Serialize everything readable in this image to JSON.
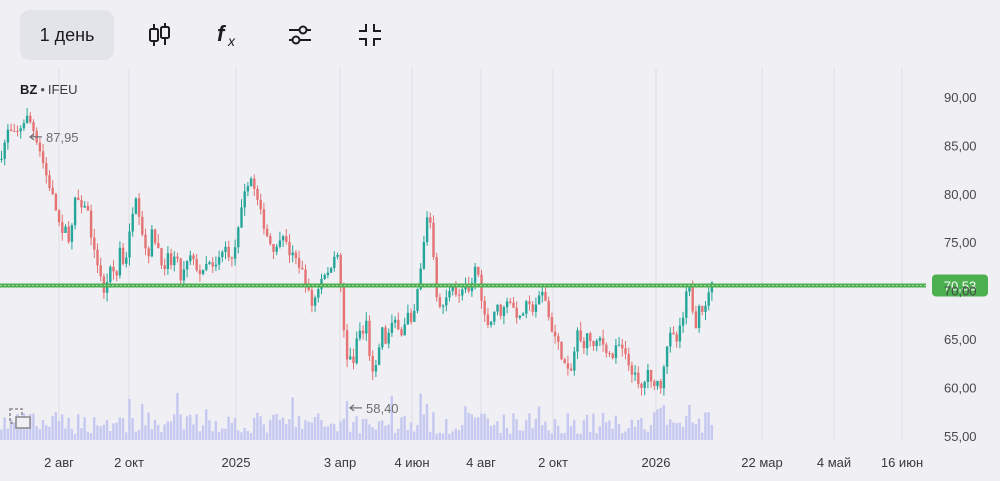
{
  "toolbar": {
    "period_label": "1 день",
    "icons": [
      "candlestick-icon",
      "function-icon",
      "settings-sliders-icon",
      "collapse-icon"
    ]
  },
  "symbol": {
    "ticker": "BZ",
    "separator": "•",
    "exchange": "IFEU"
  },
  "colors": {
    "up": "#26a69a",
    "down": "#e57373",
    "level_line": "#4caf50",
    "volume": "#c5c8f0",
    "grid": "#dcdce4",
    "background": "#efeff4",
    "price_tag_bg": "#4caf50"
  },
  "chart_data": {
    "type": "candlestick",
    "y_axis": {
      "ticks": [
        "90,00",
        "85,00",
        "80,00",
        "75,00",
        "70,00",
        "65,00",
        "60,00",
        "55,00"
      ],
      "ylim": [
        55,
        91
      ]
    },
    "x_axis": {
      "ticks": [
        "2 авг",
        "2 окт",
        "2025",
        "3 апр",
        "4 июн",
        "4 авг",
        "2 окт",
        "2026",
        "22 мар",
        "4 май",
        "16 июн"
      ]
    },
    "current_price": {
      "value": 70.53,
      "label": "70,53"
    },
    "annotations": [
      {
        "label": "87,95",
        "value": 87.95,
        "type": "high"
      },
      {
        "label": "58,40",
        "value": 58.4,
        "type": "low"
      }
    ],
    "price_path": [
      [
        0,
        83.5
      ],
      [
        8,
        86.5
      ],
      [
        16,
        86.0
      ],
      [
        24,
        87.5
      ],
      [
        28,
        87.95
      ],
      [
        34,
        86.5
      ],
      [
        40,
        84.5
      ],
      [
        46,
        82.0
      ],
      [
        52,
        80.0
      ],
      [
        58,
        77.5
      ],
      [
        62,
        75.5
      ],
      [
        66,
        76.5
      ],
      [
        70,
        75.0
      ],
      [
        76,
        80.0
      ],
      [
        82,
        78.0
      ],
      [
        86,
        79.5
      ],
      [
        90,
        76.5
      ],
      [
        94,
        74.0
      ],
      [
        100,
        72.0
      ],
      [
        104,
        69.5
      ],
      [
        108,
        71.5
      ],
      [
        112,
        72.5
      ],
      [
        116,
        71.0
      ],
      [
        120,
        74.5
      ],
      [
        124,
        72.5
      ],
      [
        128,
        74.5
      ],
      [
        132,
        78.0
      ],
      [
        136,
        80.0
      ],
      [
        140,
        77.5
      ],
      [
        144,
        75.0
      ],
      [
        148,
        73.5
      ],
      [
        152,
        76.0
      ],
      [
        156,
        75.0
      ],
      [
        160,
        74.0
      ],
      [
        164,
        71.5
      ],
      [
        168,
        73.5
      ],
      [
        172,
        72.5
      ],
      [
        176,
        74.0
      ],
      [
        180,
        71.0
      ],
      [
        184,
        72.0
      ],
      [
        190,
        73.5
      ],
      [
        196,
        72.5
      ],
      [
        202,
        71.5
      ],
      [
        208,
        73.0
      ],
      [
        214,
        72.0
      ],
      [
        220,
        73.5
      ],
      [
        226,
        74.5
      ],
      [
        232,
        73.0
      ],
      [
        238,
        76.0
      ],
      [
        242,
        78.5
      ],
      [
        246,
        80.5
      ],
      [
        250,
        82.0
      ],
      [
        254,
        80.5
      ],
      [
        258,
        79.0
      ],
      [
        262,
        77.5
      ],
      [
        266,
        76.0
      ],
      [
        270,
        75.0
      ],
      [
        276,
        74.0
      ],
      [
        282,
        76.5
      ],
      [
        288,
        74.0
      ],
      [
        294,
        73.5
      ],
      [
        300,
        72.5
      ],
      [
        304,
        71.5
      ],
      [
        308,
        70.0
      ],
      [
        312,
        68.5
      ],
      [
        316,
        69.5
      ],
      [
        320,
        71.0
      ],
      [
        324,
        72.0
      ],
      [
        328,
        71.5
      ],
      [
        332,
        73.0
      ],
      [
        336,
        74.5
      ],
      [
        340,
        71.5
      ],
      [
        343,
        67.0
      ],
      [
        346,
        62.5
      ],
      [
        350,
        63.5
      ],
      [
        354,
        62.0
      ],
      [
        358,
        66.5
      ],
      [
        362,
        65.0
      ],
      [
        366,
        67.0
      ],
      [
        370,
        63.0
      ],
      [
        374,
        60.5
      ],
      [
        378,
        63.5
      ],
      [
        382,
        66.0
      ],
      [
        386,
        64.5
      ],
      [
        390,
        66.0
      ],
      [
        396,
        67.0
      ],
      [
        402,
        65.5
      ],
      [
        408,
        67.5
      ],
      [
        412,
        66.0
      ],
      [
        416,
        69.0
      ],
      [
        420,
        71.5
      ],
      [
        424,
        75.0
      ],
      [
        428,
        78.5
      ],
      [
        432,
        76.0
      ],
      [
        436,
        70.0
      ],
      [
        440,
        68.0
      ],
      [
        446,
        69.0
      ],
      [
        452,
        71.0
      ],
      [
        458,
        69.0
      ],
      [
        464,
        70.5
      ],
      [
        470,
        69.5
      ],
      [
        476,
        73.0
      ],
      [
        480,
        70.5
      ],
      [
        484,
        67.5
      ],
      [
        490,
        66.5
      ],
      [
        496,
        68.5
      ],
      [
        502,
        67.5
      ],
      [
        508,
        69.5
      ],
      [
        514,
        68.0
      ],
      [
        520,
        67.0
      ],
      [
        526,
        68.5
      ],
      [
        532,
        68.0
      ],
      [
        538,
        69.0
      ],
      [
        544,
        70.0
      ],
      [
        548,
        67.5
      ],
      [
        552,
        66.0
      ],
      [
        558,
        64.5
      ],
      [
        564,
        62.5
      ],
      [
        570,
        61.0
      ],
      [
        574,
        63.5
      ],
      [
        578,
        66.0
      ],
      [
        582,
        64.0
      ],
      [
        588,
        65.5
      ],
      [
        594,
        64.0
      ],
      [
        600,
        65.0
      ],
      [
        606,
        64.0
      ],
      [
        612,
        63.0
      ],
      [
        618,
        64.5
      ],
      [
        624,
        63.5
      ],
      [
        630,
        62.0
      ],
      [
        636,
        61.0
      ],
      [
        640,
        59.5
      ],
      [
        644,
        60.5
      ],
      [
        648,
        61.5
      ],
      [
        652,
        60.0
      ],
      [
        656,
        61.0
      ],
      [
        660,
        59.8
      ],
      [
        664,
        62.5
      ],
      [
        668,
        65.0
      ],
      [
        672,
        65.5
      ],
      [
        676,
        64.5
      ],
      [
        680,
        66.0
      ],
      [
        684,
        67.5
      ],
      [
        688,
        71.0
      ],
      [
        692,
        68.5
      ],
      [
        696,
        66.5
      ],
      [
        700,
        69.5
      ],
      [
        704,
        67.0
      ],
      [
        708,
        70.0
      ],
      [
        712,
        70.53
      ]
    ]
  }
}
